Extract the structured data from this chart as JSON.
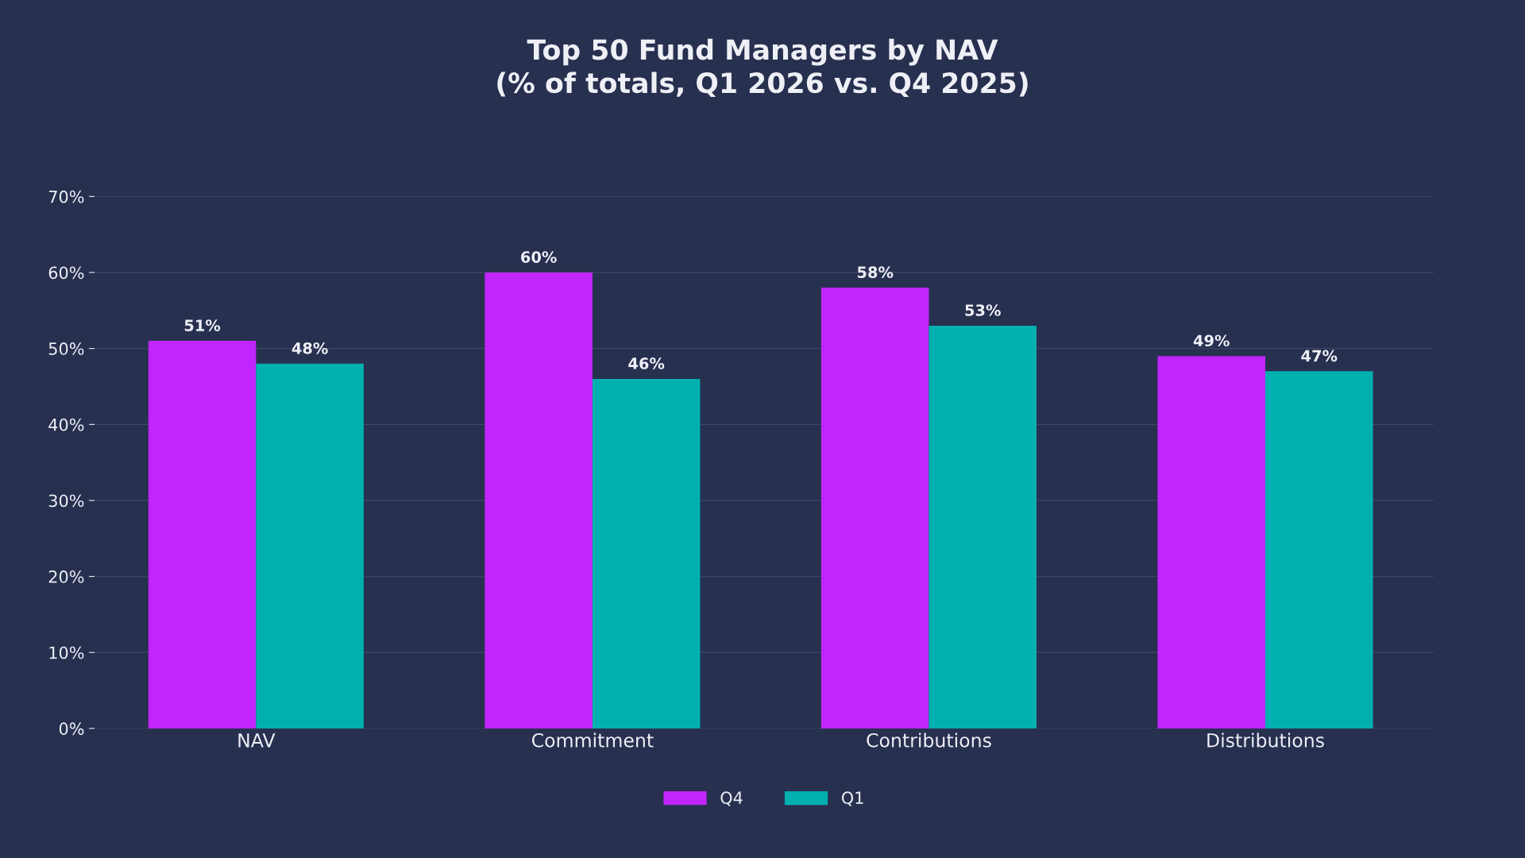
{
  "chart_data": {
    "type": "bar",
    "title": "Top 50 Fund Managers by NAV\n(% of totals, Q1 2026 vs. Q4 2025)",
    "categories": [
      "NAV",
      "Commitment",
      "Contributions",
      "Distributions"
    ],
    "series": [
      {
        "name": "Q4",
        "color": "#c026fc",
        "values": [
          51,
          60,
          58,
          49
        ],
        "value_labels": [
          "51%",
          "60%",
          "58%",
          "49%"
        ]
      },
      {
        "name": "Q1",
        "color": "#00b0b0",
        "values": [
          48,
          46,
          53,
          47
        ],
        "value_labels": [
          "48%",
          "46%",
          "53%",
          "47%"
        ]
      }
    ],
    "ylim": [
      0,
      70
    ],
    "yticks": [
      {
        "value": 0,
        "label": "0%"
      },
      {
        "value": 10,
        "label": "10%"
      },
      {
        "value": 20,
        "label": "20%"
      },
      {
        "value": 30,
        "label": "30%"
      },
      {
        "value": 40,
        "label": "40%"
      },
      {
        "value": 50,
        "label": "50%"
      },
      {
        "value": 60,
        "label": "60%"
      },
      {
        "value": 70,
        "label": "70%"
      }
    ],
    "grid": "y",
    "legend": "bottom"
  }
}
